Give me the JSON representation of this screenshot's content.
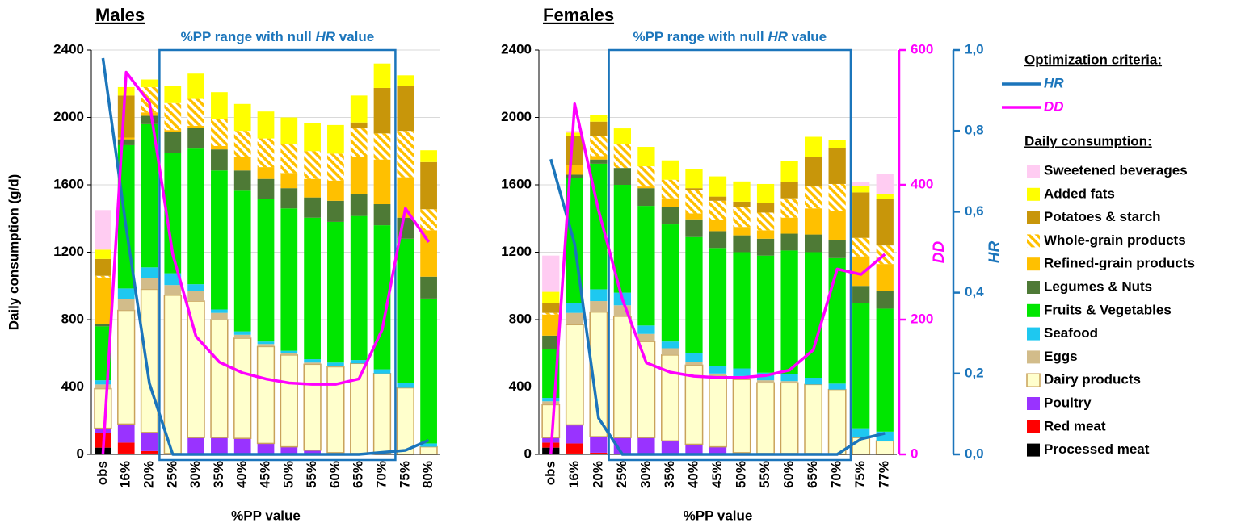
{
  "chart_data": [
    {
      "type": "bar",
      "title": "Males",
      "annotation": {
        "before": "%PP range with null ",
        "em": "HR",
        "after": " value"
      },
      "x_label": "%PP value",
      "y_label": "Daily consumption (g/d)",
      "categories": [
        "obs",
        "16%",
        "20%",
        "25%",
        "30%",
        "35%",
        "40%",
        "45%",
        "50%",
        "55%",
        "60%",
        "65%",
        "70%",
        "75%",
        "80%"
      ],
      "highlight_range": [
        3,
        12
      ],
      "ylim": [
        0,
        2400
      ],
      "yticks": [
        0,
        400,
        800,
        1200,
        1600,
        2000,
        2400
      ],
      "grid": true,
      "y2lim": [
        0,
        600
      ],
      "y3lim": [
        0,
        1
      ],
      "series": [
        {
          "name": "Processed meat",
          "color": "#000000",
          "values": [
            40,
            5,
            5,
            0,
            0,
            0,
            0,
            0,
            0,
            0,
            0,
            0,
            0,
            0,
            0
          ]
        },
        {
          "name": "Red meat",
          "color": "#ff0000",
          "values": [
            85,
            65,
            15,
            0,
            0,
            0,
            0,
            0,
            0,
            0,
            0,
            0,
            0,
            0,
            0
          ]
        },
        {
          "name": "Poultry",
          "color": "#9933ff",
          "values": [
            30,
            110,
            110,
            5,
            100,
            100,
            95,
            65,
            45,
            25,
            10,
            5,
            5,
            0,
            0
          ]
        },
        {
          "name": "Dairy products",
          "color": "#ffffcc",
          "values": [
            235,
            675,
            850,
            940,
            810,
            700,
            595,
            575,
            545,
            510,
            510,
            535,
            475,
            395,
            45
          ]
        },
        {
          "name": "Eggs",
          "color": "#d2bc8a",
          "values": [
            25,
            65,
            65,
            60,
            60,
            40,
            20,
            15,
            10,
            10,
            5,
            0,
            0,
            0,
            0
          ]
        },
        {
          "name": "Seafood",
          "color": "#1ec8f0",
          "values": [
            25,
            65,
            65,
            70,
            40,
            20,
            20,
            15,
            15,
            20,
            20,
            20,
            25,
            30,
            20
          ]
        },
        {
          "name": "Fruits & Vegetables",
          "color": "#00e600",
          "values": [
            320,
            850,
            850,
            715,
            805,
            825,
            835,
            845,
            845,
            840,
            835,
            855,
            855,
            855,
            860
          ]
        },
        {
          "name": "Legumes & Nuts",
          "color": "#4e7a36",
          "values": [
            15,
            35,
            50,
            125,
            125,
            125,
            120,
            120,
            120,
            120,
            125,
            130,
            125,
            125,
            130
          ]
        },
        {
          "name": "Refined-grain products",
          "color": "#ffc000",
          "values": [
            275,
            10,
            20,
            10,
            10,
            20,
            80,
            70,
            90,
            110,
            120,
            220,
            265,
            240,
            275
          ]
        },
        {
          "name": "Whole-grain products",
          "color": "#ffc000",
          "hatch": true,
          "values": [
            10,
            0,
            150,
            160,
            160,
            160,
            155,
            170,
            170,
            165,
            160,
            170,
            155,
            275,
            125
          ]
        },
        {
          "name": "Potatoes & starch",
          "color": "#c8960a",
          "values": [
            100,
            250,
            0,
            0,
            0,
            0,
            0,
            0,
            0,
            0,
            0,
            35,
            270,
            265,
            280
          ]
        },
        {
          "name": "Added fats",
          "color": "#ffff00",
          "values": [
            55,
            50,
            45,
            100,
            150,
            160,
            160,
            160,
            160,
            165,
            170,
            160,
            145,
            65,
            70
          ]
        },
        {
          "name": "Sweetened beverages",
          "color": "#ffccf2",
          "values": [
            235,
            0,
            0,
            0,
            0,
            0,
            0,
            0,
            0,
            0,
            0,
            0,
            0,
            0,
            0
          ]
        }
      ],
      "lines": [
        {
          "name": "HR",
          "color": "#1b75bb",
          "axis": "y3",
          "values": [
            0.98,
            0.56,
            0.175,
            0,
            0,
            0,
            0,
            0,
            0,
            0,
            0,
            0,
            0.005,
            0.01,
            0.035
          ]
        },
        {
          "name": "DD",
          "color": "#ff00ff",
          "axis": "y2",
          "values": [
            0,
            567,
            522,
            297,
            175,
            137,
            121,
            112,
            106,
            104,
            104,
            112,
            185,
            365,
            315
          ]
        }
      ]
    },
    {
      "type": "bar",
      "title": "Females",
      "annotation": {
        "before": "%PP range with null ",
        "em": "HR",
        "after": " value"
      },
      "x_label": "%PP value",
      "y2_label": "DD",
      "y3_label": "HR",
      "categories": [
        "obs",
        "16%",
        "20%",
        "25%",
        "30%",
        "35%",
        "40%",
        "45%",
        "50%",
        "55%",
        "60%",
        "65%",
        "70%",
        "75%",
        "77%"
      ],
      "highlight_range": [
        3,
        12
      ],
      "ylim": [
        0,
        2400
      ],
      "yticks": [
        0,
        400,
        800,
        1200,
        1600,
        2000,
        2400
      ],
      "grid": true,
      "y2lim": [
        0,
        600
      ],
      "y2ticks": [
        0,
        200,
        400,
        600
      ],
      "y3lim": [
        0,
        1
      ],
      "y3ticks": [
        {
          "value": 0,
          "label": "0,0"
        },
        {
          "value": 0.2,
          "label": "0,2"
        },
        {
          "value": 0.4,
          "label": "0,4"
        },
        {
          "value": 0.6,
          "label": "0,6"
        },
        {
          "value": 0.8,
          "label": "0,8"
        },
        {
          "value": 1,
          "label": "1,0"
        }
      ],
      "series": [
        {
          "values": [
            40,
            5,
            5,
            0,
            0,
            0,
            0,
            0,
            0,
            0,
            0,
            0,
            0,
            0,
            0
          ]
        },
        {
          "values": [
            30,
            60,
            5,
            0,
            0,
            0,
            0,
            0,
            0,
            0,
            0,
            0,
            0,
            0,
            0
          ]
        },
        {
          "values": [
            30,
            110,
            95,
            100,
            100,
            80,
            60,
            45,
            10,
            5,
            5,
            5,
            0,
            0,
            0
          ]
        },
        {
          "values": [
            195,
            595,
            740,
            720,
            570,
            510,
            470,
            420,
            435,
            420,
            420,
            410,
            385,
            100,
            80
          ]
        },
        {
          "values": [
            20,
            70,
            65,
            65,
            45,
            40,
            20,
            15,
            20,
            15,
            10,
            0,
            0,
            0,
            0
          ]
        },
        {
          "values": [
            20,
            60,
            70,
            75,
            50,
            40,
            50,
            45,
            45,
            45,
            40,
            40,
            35,
            55,
            55
          ]
        },
        {
          "values": [
            290,
            740,
            745,
            640,
            710,
            695,
            690,
            700,
            690,
            695,
            735,
            745,
            745,
            745,
            730
          ]
        },
        {
          "values": [
            80,
            20,
            25,
            100,
            105,
            105,
            105,
            100,
            100,
            100,
            100,
            105,
            105,
            100,
            105
          ]
        },
        {
          "values": [
            125,
            55,
            20,
            0,
            10,
            50,
            35,
            65,
            50,
            50,
            95,
            155,
            175,
            175,
            160
          ]
        },
        {
          "values": [
            10,
            0,
            120,
            140,
            120,
            110,
            140,
            115,
            120,
            105,
            115,
            130,
            160,
            110,
            110
          ]
        },
        {
          "values": [
            60,
            175,
            85,
            0,
            0,
            0,
            10,
            25,
            30,
            55,
            95,
            175,
            215,
            270,
            275
          ]
        },
        {
          "values": [
            65,
            20,
            40,
            95,
            115,
            115,
            115,
            120,
            120,
            115,
            125,
            120,
            45,
            40,
            30
          ]
        },
        {
          "values": [
            215,
            10,
            0,
            0,
            0,
            0,
            0,
            0,
            0,
            0,
            0,
            0,
            0,
            20,
            120
          ]
        }
      ],
      "lines": [
        {
          "values": [
            0.73,
            0.52,
            0.09,
            0,
            0,
            0,
            0,
            0,
            0,
            0,
            0,
            0,
            0,
            0.038,
            0.052
          ]
        },
        {
          "values": [
            0,
            520,
            362,
            230,
            136,
            122,
            116,
            114,
            114,
            117,
            125,
            155,
            275,
            267,
            297
          ]
        }
      ]
    }
  ],
  "legend": {
    "criteria_title": "Optimization criteria:",
    "consumption_title": "Daily consumption:"
  }
}
